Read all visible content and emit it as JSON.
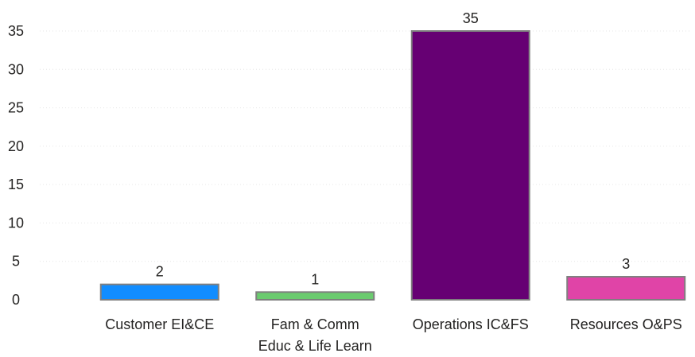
{
  "chart_data": {
    "type": "bar",
    "categories": [
      [
        "Customer EI&CE"
      ],
      [
        "Fam & Comm",
        "Educ & Life Learn"
      ],
      [
        "Operations IC&FS"
      ],
      [
        "Resources O&PS"
      ]
    ],
    "values": [
      2,
      1,
      35,
      3
    ],
    "data_labels": [
      "2",
      "1",
      "35",
      "3"
    ],
    "bar_colors": [
      "#118DFF",
      "#6BCB6F",
      "#660073",
      "#E044A7"
    ],
    "bar_border_color": "#7f7f7f",
    "title": "",
    "xlabel": "",
    "ylabel": "",
    "ylim": [
      0,
      35
    ],
    "yticks": [
      0,
      5,
      10,
      15,
      20,
      25,
      30,
      35
    ],
    "grid": true,
    "legend": "none"
  }
}
